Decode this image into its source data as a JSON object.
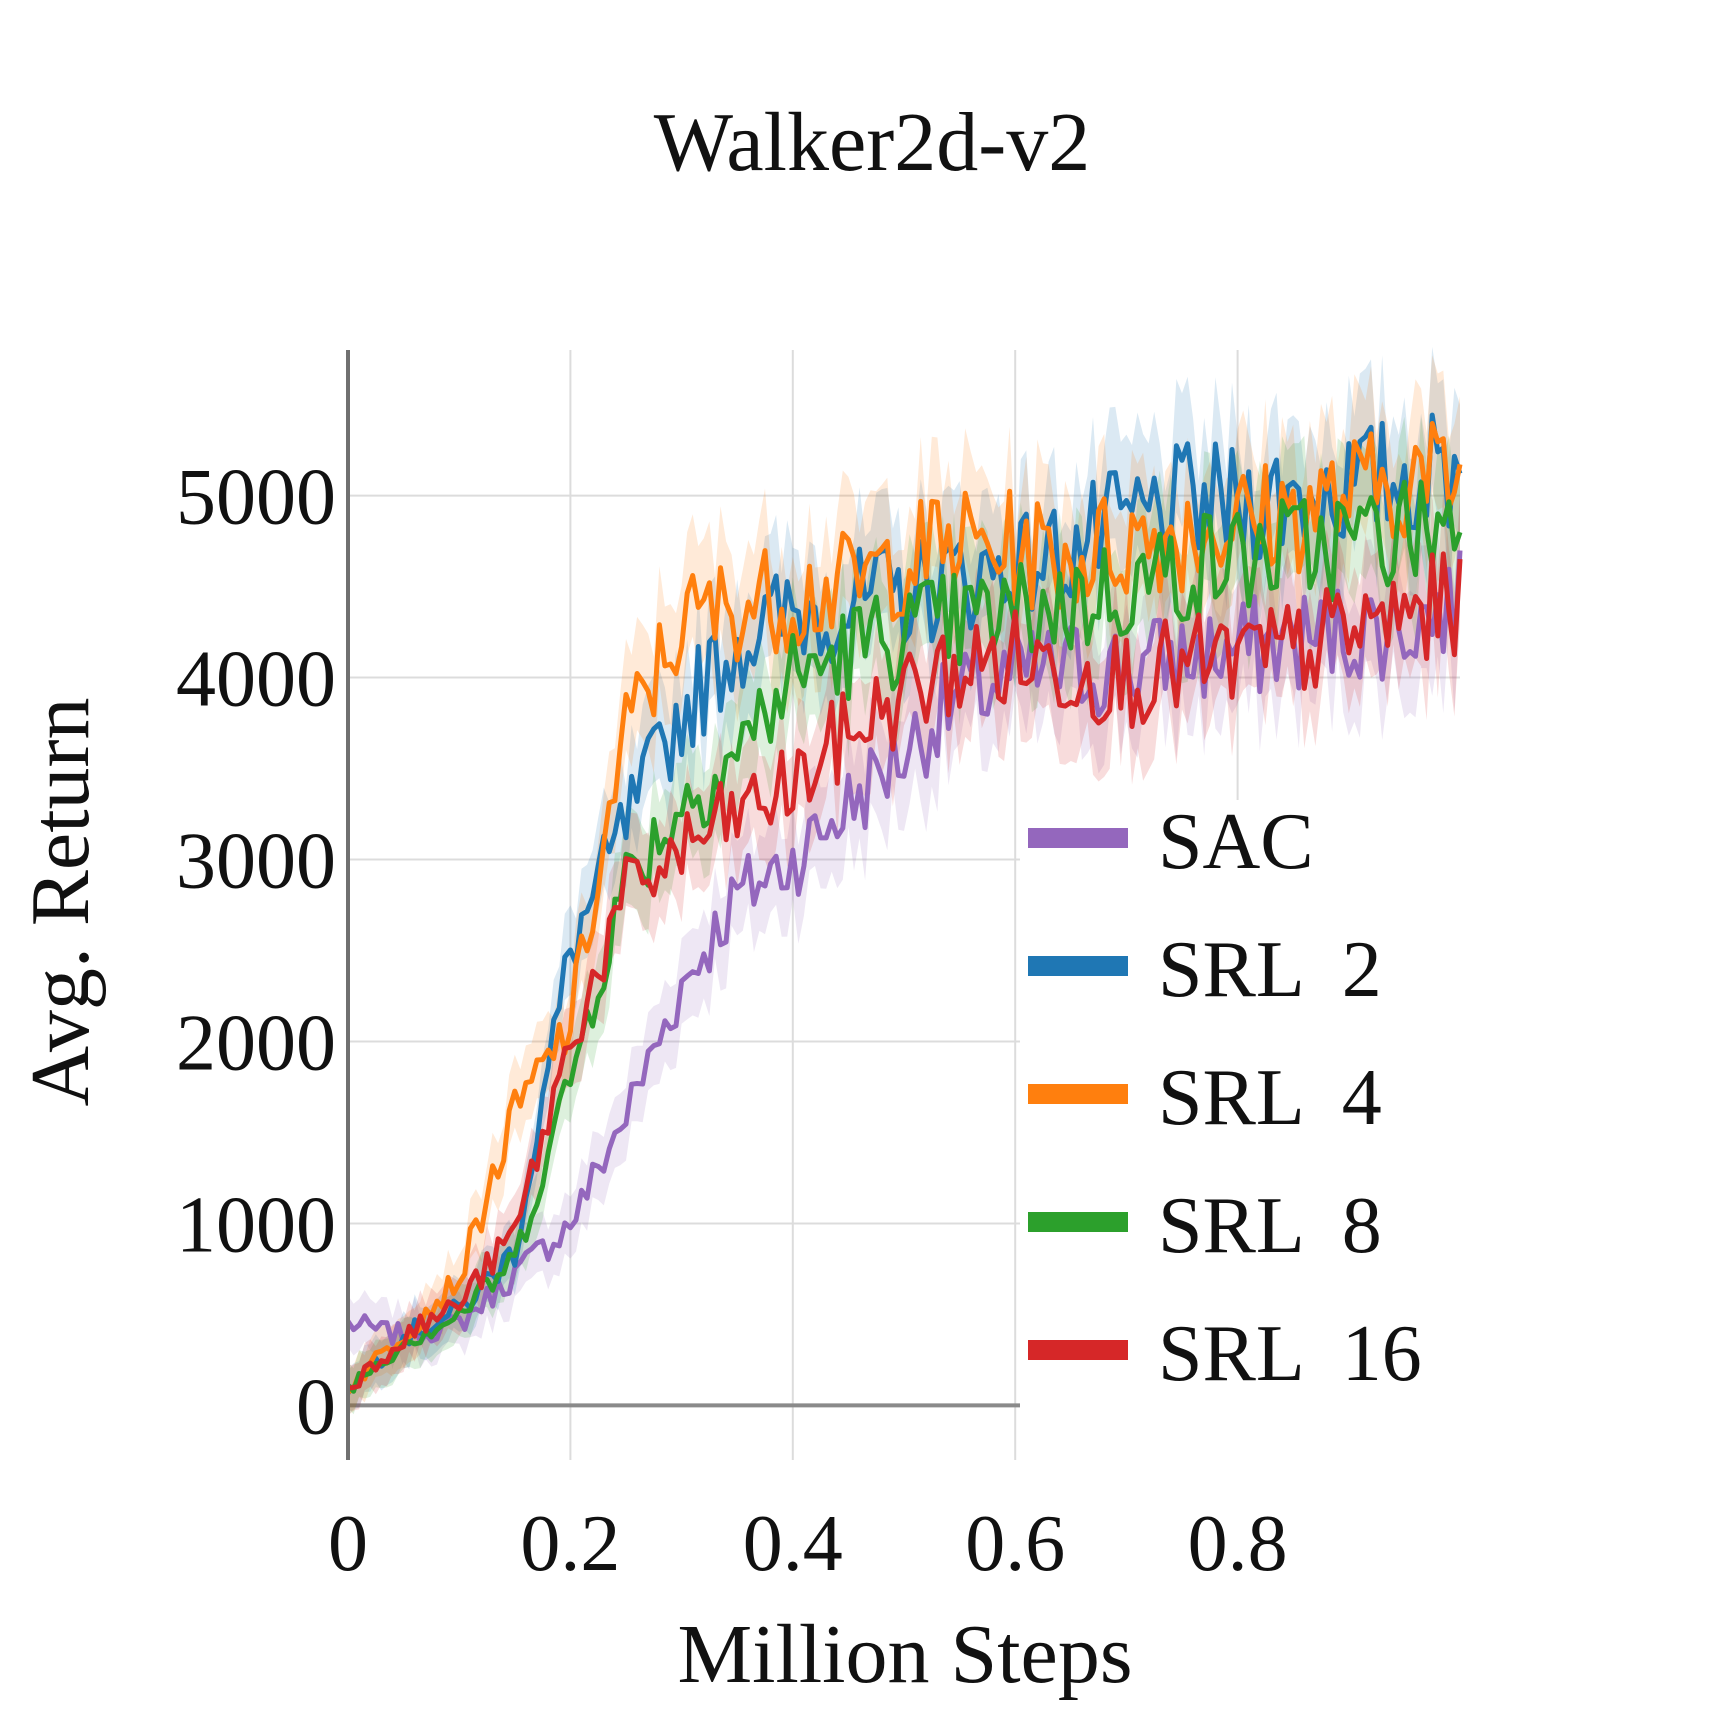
{
  "chart_data": {
    "type": "line",
    "title": "Walker2d-v2",
    "xlabel": "Million Steps",
    "ylabel": "Avg. Return",
    "xlim": [
      0,
      1.0
    ],
    "ylim": [
      -300,
      5800
    ],
    "xticks": [
      0,
      0.2,
      0.4,
      0.6,
      0.8
    ],
    "xtick_labels": [
      "0",
      "0.2",
      "0.4",
      "0.6",
      "0.8"
    ],
    "yticks": [
      0,
      1000,
      2000,
      3000,
      4000,
      5000
    ],
    "ytick_labels": [
      "0",
      "1000",
      "2000",
      "3000",
      "4000",
      "5000"
    ],
    "grid": true,
    "legend_position": "bottom-right",
    "x": [
      0,
      0.05,
      0.1,
      0.15,
      0.2,
      0.25,
      0.3,
      0.35,
      0.4,
      0.45,
      0.5,
      0.55,
      0.6,
      0.65,
      0.7,
      0.75,
      0.8,
      0.85,
      0.9,
      0.95,
      1.0
    ],
    "series": [
      {
        "name": "SAC",
        "color": "#9467bd",
        "values": [
          450,
          380,
          450,
          720,
          1000,
          1600,
          2300,
          2800,
          3000,
          3300,
          3600,
          3900,
          4000,
          4050,
          4050,
          4100,
          4150,
          4200,
          4250,
          4300,
          4400
        ]
      },
      {
        "name": "SRL  2",
        "color": "#1f77b4",
        "values": [
          100,
          380,
          520,
          850,
          2500,
          3200,
          3800,
          4200,
          4350,
          4400,
          4450,
          4550,
          4600,
          4700,
          4850,
          4950,
          4950,
          5000,
          5050,
          5100,
          5150
        ]
      },
      {
        "name": "SRL  4",
        "color": "#ff7f0e",
        "values": [
          100,
          400,
          700,
          1600,
          2100,
          3700,
          4300,
          4400,
          4450,
          4500,
          4650,
          4750,
          4700,
          4650,
          4750,
          4800,
          4850,
          4900,
          5000,
          5100,
          5100
        ]
      },
      {
        "name": "SRL  8",
        "color": "#2ca02c",
        "values": [
          100,
          350,
          500,
          800,
          1800,
          2900,
          3300,
          3600,
          4000,
          4150,
          4250,
          4300,
          4350,
          4400,
          4500,
          4600,
          4650,
          4700,
          4750,
          4800,
          4850
        ]
      },
      {
        "name": "SRL  16",
        "color": "#d62728",
        "values": [
          100,
          380,
          560,
          950,
          2000,
          2800,
          3050,
          3250,
          3400,
          3700,
          3900,
          4050,
          4100,
          4050,
          4000,
          4050,
          4100,
          4150,
          4250,
          4350,
          4400
        ]
      }
    ]
  }
}
